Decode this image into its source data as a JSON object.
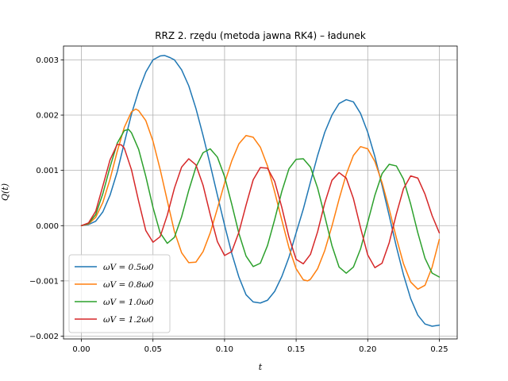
{
  "chart_data": {
    "type": "line",
    "title": "RRZ 2. rzędu (metoda jawna RK4) – ładunek",
    "xlabel": "t",
    "ylabel": "Q(t)",
    "xlim": [
      -0.0125,
      0.2625
    ],
    "ylim": [
      -0.00205,
      0.00325
    ],
    "xticks": [
      0.0,
      0.05,
      0.1,
      0.15,
      0.2,
      0.25
    ],
    "xtick_labels": [
      "0.00",
      "0.05",
      "0.10",
      "0.15",
      "0.20",
      "0.25"
    ],
    "yticks": [
      -0.002,
      -0.001,
      0.0,
      0.001,
      0.002,
      0.003
    ],
    "ytick_labels": [
      "−0.002",
      "−0.001",
      "0.000",
      "0.001",
      "0.002",
      "0.003"
    ],
    "grid": true,
    "legend_position": "lower-left",
    "series": [
      {
        "name": "ωV = 0.5ω0",
        "color": "#1f77b4",
        "points": [
          [
            0.0,
            0.0
          ],
          [
            0.005,
            2e-05
          ],
          [
            0.01,
            8e-05
          ],
          [
            0.015,
            0.00025
          ],
          [
            0.02,
            0.00055
          ],
          [
            0.025,
            0.00097
          ],
          [
            0.03,
            0.0015
          ],
          [
            0.035,
            0.00202
          ],
          [
            0.04,
            0.00244
          ],
          [
            0.045,
            0.00278
          ],
          [
            0.05,
            0.003
          ],
          [
            0.055,
            0.00307
          ],
          [
            0.058,
            0.00308
          ],
          [
            0.062,
            0.00304
          ],
          [
            0.065,
            0.003
          ],
          [
            0.07,
            0.00282
          ],
          [
            0.075,
            0.00253
          ],
          [
            0.08,
            0.00212
          ],
          [
            0.085,
            0.00163
          ],
          [
            0.09,
            0.0011
          ],
          [
            0.095,
            0.00055
          ],
          [
            0.1,
            1e-05
          ],
          [
            0.105,
            -0.0005
          ],
          [
            0.11,
            -0.00093
          ],
          [
            0.115,
            -0.00125
          ],
          [
            0.12,
            -0.00138
          ],
          [
            0.125,
            -0.0014
          ],
          [
            0.13,
            -0.00135
          ],
          [
            0.135,
            -0.00119
          ],
          [
            0.14,
            -0.00092
          ],
          [
            0.145,
            -0.00057
          ],
          [
            0.15,
            -0.00013
          ],
          [
            0.155,
            0.0003
          ],
          [
            0.16,
            0.00079
          ],
          [
            0.165,
            0.00127
          ],
          [
            0.17,
            0.00169
          ],
          [
            0.175,
            0.002
          ],
          [
            0.18,
            0.00221
          ],
          [
            0.185,
            0.00228
          ],
          [
            0.19,
            0.00224
          ],
          [
            0.195,
            0.00203
          ],
          [
            0.2,
            0.00169
          ],
          [
            0.205,
            0.00125
          ],
          [
            0.21,
            0.00073
          ],
          [
            0.215,
            0.00018
          ],
          [
            0.22,
            -0.00038
          ],
          [
            0.225,
            -0.00089
          ],
          [
            0.23,
            -0.00132
          ],
          [
            0.235,
            -0.00162
          ],
          [
            0.24,
            -0.00178
          ],
          [
            0.245,
            -0.00182
          ],
          [
            0.25,
            -0.0018
          ]
        ]
      },
      {
        "name": "ωV = 0.8ω0",
        "color": "#ff7f0e",
        "points": [
          [
            0.0,
            0.0
          ],
          [
            0.005,
            3e-05
          ],
          [
            0.01,
            0.00015
          ],
          [
            0.015,
            0.00042
          ],
          [
            0.02,
            0.00084
          ],
          [
            0.025,
            0.00134
          ],
          [
            0.03,
            0.00178
          ],
          [
            0.035,
            0.00206
          ],
          [
            0.038,
            0.00211
          ],
          [
            0.04,
            0.00208
          ],
          [
            0.045,
            0.0019
          ],
          [
            0.05,
            0.00153
          ],
          [
            0.055,
            0.00102
          ],
          [
            0.06,
            0.00045
          ],
          [
            0.065,
            -0.00011
          ],
          [
            0.07,
            -0.00049
          ],
          [
            0.075,
            -0.00067
          ],
          [
            0.08,
            -0.00066
          ],
          [
            0.085,
            -0.00047
          ],
          [
            0.09,
            -0.00013
          ],
          [
            0.095,
            0.00031
          ],
          [
            0.1,
            0.00077
          ],
          [
            0.105,
            0.00117
          ],
          [
            0.11,
            0.00148
          ],
          [
            0.115,
            0.00163
          ],
          [
            0.12,
            0.0016
          ],
          [
            0.125,
            0.00142
          ],
          [
            0.13,
            0.00108
          ],
          [
            0.135,
            0.00061
          ],
          [
            0.14,
            0.0001
          ],
          [
            0.145,
            -0.0004
          ],
          [
            0.15,
            -0.00078
          ],
          [
            0.155,
            -0.00098
          ],
          [
            0.158,
            -0.001
          ],
          [
            0.16,
            -0.00097
          ],
          [
            0.165,
            -0.00078
          ],
          [
            0.17,
            -0.00045
          ],
          [
            0.175,
            -1e-05
          ],
          [
            0.18,
            0.00048
          ],
          [
            0.185,
            0.00093
          ],
          [
            0.19,
            0.00127
          ],
          [
            0.195,
            0.00143
          ],
          [
            0.2,
            0.00139
          ],
          [
            0.205,
            0.00116
          ],
          [
            0.21,
            0.00078
          ],
          [
            0.215,
            0.0003
          ],
          [
            0.22,
            -0.00022
          ],
          [
            0.225,
            -0.00069
          ],
          [
            0.23,
            -0.00102
          ],
          [
            0.235,
            -0.00115
          ],
          [
            0.24,
            -0.00108
          ],
          [
            0.245,
            -0.00075
          ],
          [
            0.25,
            -0.00025
          ]
        ]
      },
      {
        "name": "ωV = 1.0ω0",
        "color": "#2ca02c",
        "points": [
          [
            0.0,
            0.0
          ],
          [
            0.005,
            4e-05
          ],
          [
            0.01,
            0.0002
          ],
          [
            0.015,
            0.00058
          ],
          [
            0.02,
            0.00106
          ],
          [
            0.025,
            0.00149
          ],
          [
            0.03,
            0.00172
          ],
          [
            0.033,
            0.00174
          ],
          [
            0.035,
            0.00168
          ],
          [
            0.04,
            0.00138
          ],
          [
            0.045,
            0.00089
          ],
          [
            0.05,
            0.00033
          ],
          [
            0.055,
            -0.00013
          ],
          [
            0.06,
            -0.00032
          ],
          [
            0.065,
            -0.00021
          ],
          [
            0.07,
            0.00016
          ],
          [
            0.075,
            0.00064
          ],
          [
            0.08,
            0.00106
          ],
          [
            0.085,
            0.00132
          ],
          [
            0.09,
            0.00139
          ],
          [
            0.095,
            0.00124
          ],
          [
            0.1,
            0.00089
          ],
          [
            0.105,
            0.00039
          ],
          [
            0.11,
            -0.00014
          ],
          [
            0.115,
            -0.00055
          ],
          [
            0.12,
            -0.00074
          ],
          [
            0.125,
            -0.00068
          ],
          [
            0.13,
            -0.00036
          ],
          [
            0.135,
            0.00011
          ],
          [
            0.14,
            0.00062
          ],
          [
            0.145,
            0.00103
          ],
          [
            0.15,
            0.0012
          ],
          [
            0.155,
            0.00121
          ],
          [
            0.16,
            0.00106
          ],
          [
            0.165,
            0.00068
          ],
          [
            0.17,
            0.00017
          ],
          [
            0.175,
            -0.00036
          ],
          [
            0.18,
            -0.00075
          ],
          [
            0.185,
            -0.00086
          ],
          [
            0.19,
            -0.00075
          ],
          [
            0.195,
            -0.00042
          ],
          [
            0.2,
            6e-05
          ],
          [
            0.205,
            0.00055
          ],
          [
            0.21,
            0.00094
          ],
          [
            0.215,
            0.00111
          ],
          [
            0.22,
            0.00108
          ],
          [
            0.225,
            0.00084
          ],
          [
            0.23,
            0.00039
          ],
          [
            0.235,
            -0.00013
          ],
          [
            0.24,
            -0.00059
          ],
          [
            0.245,
            -0.00086
          ],
          [
            0.25,
            -0.00093
          ]
        ]
      },
      {
        "name": "ωV = 1.2ω0",
        "color": "#d62728",
        "points": [
          [
            0.0,
            0.0
          ],
          [
            0.005,
            5e-05
          ],
          [
            0.01,
            0.00026
          ],
          [
            0.015,
            0.00072
          ],
          [
            0.02,
            0.00119
          ],
          [
            0.025,
            0.00147
          ],
          [
            0.028,
            0.00146
          ],
          [
            0.03,
            0.0014
          ],
          [
            0.035,
            0.00101
          ],
          [
            0.04,
            0.00044
          ],
          [
            0.045,
            -9e-05
          ],
          [
            0.05,
            -0.0003
          ],
          [
            0.055,
            -0.0002
          ],
          [
            0.06,
            0.00019
          ],
          [
            0.065,
            0.00068
          ],
          [
            0.07,
            0.00106
          ],
          [
            0.075,
            0.00121
          ],
          [
            0.08,
            0.0011
          ],
          [
            0.085,
            0.00073
          ],
          [
            0.09,
            0.0002
          ],
          [
            0.095,
            -0.00029
          ],
          [
            0.1,
            -0.00054
          ],
          [
            0.105,
            -0.00047
          ],
          [
            0.11,
            -0.00012
          ],
          [
            0.115,
            0.00037
          ],
          [
            0.12,
            0.00083
          ],
          [
            0.125,
            0.00105
          ],
          [
            0.13,
            0.00104
          ],
          [
            0.135,
            0.0008
          ],
          [
            0.14,
            0.00033
          ],
          [
            0.145,
            -0.00021
          ],
          [
            0.15,
            -0.00061
          ],
          [
            0.155,
            -0.00069
          ],
          [
            0.16,
            -0.00052
          ],
          [
            0.165,
            -0.00011
          ],
          [
            0.17,
            0.00041
          ],
          [
            0.175,
            0.00082
          ],
          [
            0.18,
            0.00096
          ],
          [
            0.185,
            0.00086
          ],
          [
            0.19,
            0.00049
          ],
          [
            0.195,
            -4e-05
          ],
          [
            0.2,
            -0.00053
          ],
          [
            0.205,
            -0.00076
          ],
          [
            0.21,
            -0.00068
          ],
          [
            0.215,
            -0.00031
          ],
          [
            0.22,
            0.00021
          ],
          [
            0.225,
            0.00067
          ],
          [
            0.23,
            0.0009
          ],
          [
            0.235,
            0.00086
          ],
          [
            0.24,
            0.00057
          ],
          [
            0.245,
            0.00018
          ],
          [
            0.25,
            -0.00013
          ]
        ]
      }
    ]
  }
}
